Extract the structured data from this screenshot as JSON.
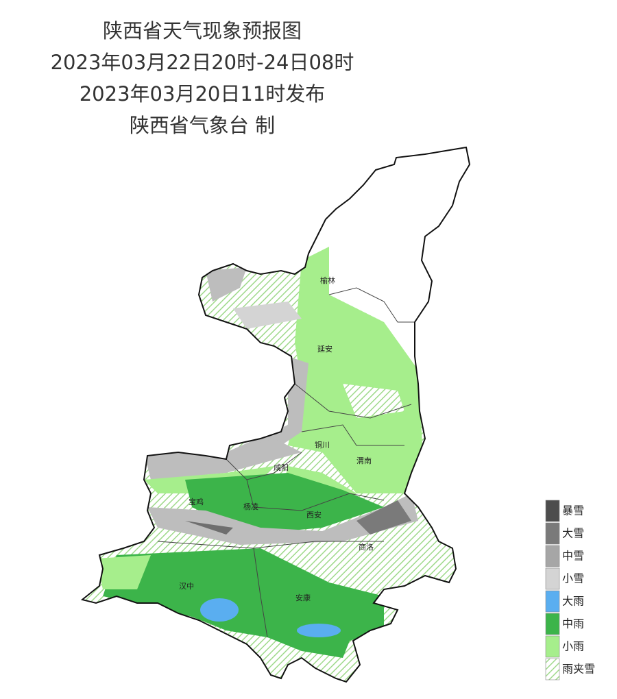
{
  "header": {
    "lines": [
      "陕西省天气现象预报图",
      "2023年03月22日20时-24日08时",
      "2023年03月20日11时发布",
      "陕西省气象台 制"
    ]
  },
  "cities": [
    "榆林",
    "延安",
    "铜川",
    "咸阳",
    "渭南",
    "宝鸡",
    "杨凌",
    "西安",
    "商洛",
    "汉中",
    "安康"
  ],
  "legend": [
    {
      "label": "暴雪",
      "color": "#4d4d4d"
    },
    {
      "label": "大雪",
      "color": "#7a7a7a"
    },
    {
      "label": "中雪",
      "color": "#a6a6a6"
    },
    {
      "label": "小雪",
      "color": "#d4d4d4"
    },
    {
      "label": "大雨",
      "color": "#5aaef0"
    },
    {
      "label": "中雨",
      "color": "#3cb44a"
    },
    {
      "label": "小雨",
      "color": "#a6ee8c"
    },
    {
      "label": "雨夹雪",
      "color": "#9ed98a"
    }
  ]
}
